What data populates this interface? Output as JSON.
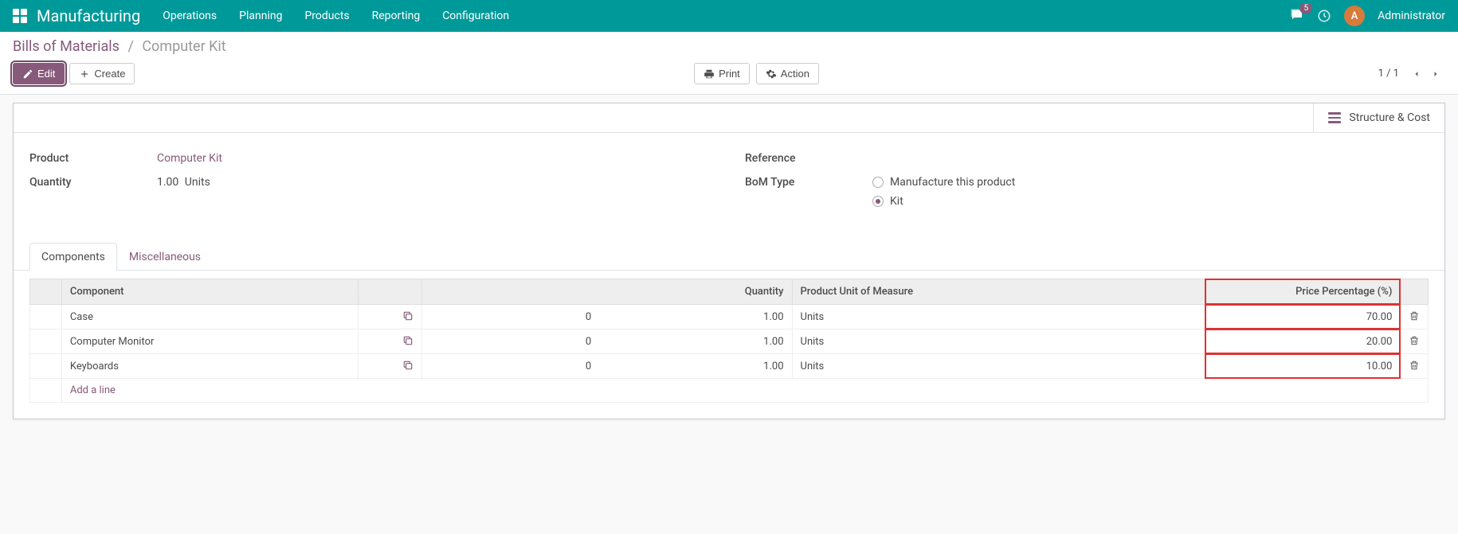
{
  "topbar": {
    "app_name": "Manufacturing",
    "menu": [
      "Operations",
      "Planning",
      "Products",
      "Reporting",
      "Configuration"
    ],
    "msg_count": "5",
    "avatar_initial": "A",
    "user": "Administrator"
  },
  "breadcrumb": {
    "root": "Bills of Materials",
    "current": "Computer Kit"
  },
  "buttons": {
    "edit": "Edit",
    "create": "Create",
    "print": "Print",
    "action": "Action"
  },
  "pager": {
    "text": "1 / 1"
  },
  "stat": {
    "structure_cost": "Structure & Cost"
  },
  "form": {
    "product_label": "Product",
    "product_value": "Computer Kit",
    "quantity_label": "Quantity",
    "quantity_value": "1.00",
    "quantity_uom": "Units",
    "reference_label": "Reference",
    "bom_type_label": "BoM Type",
    "bom_type_options": [
      "Manufacture this product",
      "Kit"
    ],
    "bom_type_selected": 1
  },
  "tabs": {
    "components": "Components",
    "misc": "Miscellaneous"
  },
  "table": {
    "headers": {
      "component": "Component",
      "quantity": "Quantity",
      "uom": "Product Unit of Measure",
      "price_pct": "Price Percentage (%)"
    },
    "rows": [
      {
        "component": "Case",
        "zero": "0",
        "qty": "1.00",
        "uom": "Units",
        "pct": "70.00"
      },
      {
        "component": "Computer Monitor",
        "zero": "0",
        "qty": "1.00",
        "uom": "Units",
        "pct": "20.00"
      },
      {
        "component": "Keyboards",
        "zero": "0",
        "qty": "1.00",
        "uom": "Units",
        "pct": "10.00"
      }
    ],
    "add_line": "Add a line"
  },
  "colors": {
    "brand": "#009999",
    "accent": "#875a7b",
    "highlight": "#e03131"
  }
}
